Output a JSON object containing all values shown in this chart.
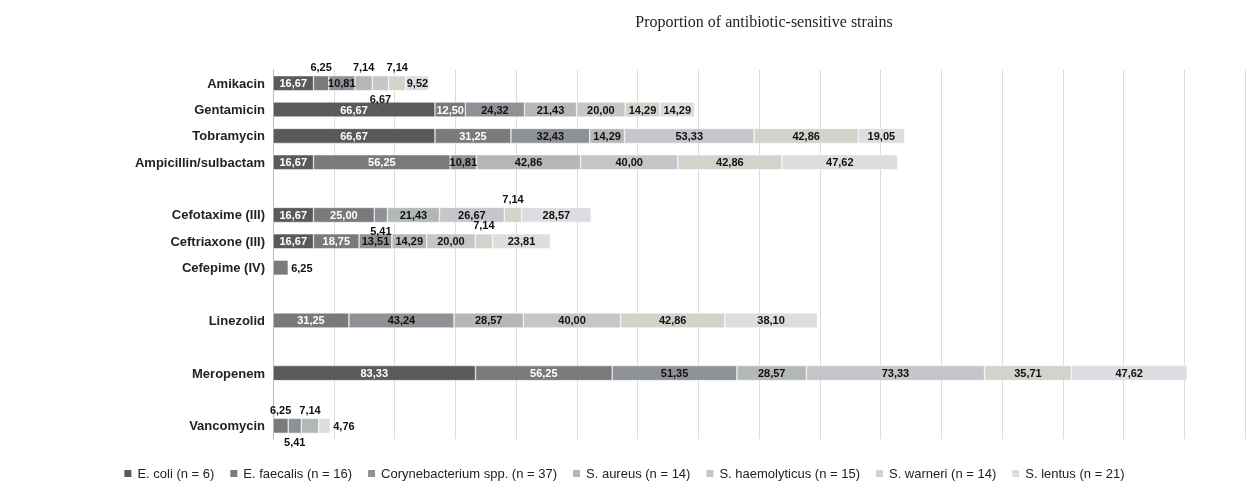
{
  "chart_data": {
    "type": "bar",
    "orientation": "horizontal",
    "stacked": true,
    "title": "Proportion of antibiotic-sensitive strains",
    "categories": [
      "Amikacin",
      "Gentamicin",
      "Tobramycin",
      "Ampicillin/sulbactam",
      null,
      "Cefotaxime (III)",
      "Ceftriaxone (III)",
      "Cefepime (IV)",
      null,
      "Linezolid",
      null,
      "Meropenem",
      null,
      "Vancomycin"
    ],
    "series": [
      {
        "name": "E. coli (n = 6)",
        "color": "#5a5a5c",
        "values": [
          16.67,
          66.67,
          66.67,
          16.67,
          null,
          16.67,
          16.67,
          null,
          null,
          null,
          null,
          83.33,
          null,
          null
        ],
        "value_labels": [
          "16,67",
          "66,67",
          "66,67",
          "16,67",
          null,
          "16,67",
          "16,67",
          null,
          null,
          null,
          null,
          "83,33",
          null,
          null
        ]
      },
      {
        "name": "E. faecalis (n = 16)",
        "color": "#7a7a7c",
        "values": [
          6.25,
          12.5,
          31.25,
          56.25,
          null,
          25.0,
          18.75,
          6.25,
          null,
          31.25,
          null,
          56.25,
          null,
          6.25
        ],
        "value_labels": [
          "6,25",
          "12,50",
          "31,25",
          "56,25",
          null,
          "25,00",
          "18,75",
          "6,25",
          null,
          "31,25",
          null,
          "56,25",
          null,
          "6,25"
        ]
      },
      {
        "name": "Corynebacterium spp. (n = 37)",
        "color": "#8e9196",
        "values": [
          10.81,
          24.32,
          32.43,
          10.81,
          null,
          5.41,
          13.51,
          null,
          null,
          43.24,
          null,
          51.35,
          null,
          5.41
        ],
        "value_labels": [
          "10,81",
          "24,32",
          "32,43",
          "10,81",
          null,
          "5,41",
          "13,51",
          null,
          null,
          "43,24",
          null,
          "51,35",
          null,
          "5,41"
        ]
      },
      {
        "name": "S. aureus (n = 14)",
        "color": "#b4b8b4",
        "values": [
          7.14,
          21.43,
          14.29,
          42.86,
          null,
          21.43,
          14.29,
          null,
          null,
          28.57,
          null,
          28.57,
          null,
          7.14
        ],
        "value_labels": [
          "7,14",
          "21,43",
          "14,29",
          "42,86",
          null,
          "21,43",
          "14,29",
          null,
          null,
          "28,57",
          null,
          "28,57",
          null,
          "7,14"
        ]
      },
      {
        "name": "S. haemolyticus (n = 15)",
        "color": "#c6c5ca",
        "values": [
          6.67,
          20.0,
          53.33,
          40.0,
          null,
          26.67,
          20.0,
          null,
          null,
          40.0,
          null,
          73.33,
          null,
          null
        ],
        "value_labels": [
          "6,67",
          "20,00",
          "53,33",
          "40,00",
          null,
          "26,67",
          "20,00",
          null,
          null,
          "40,00",
          null,
          "73,33",
          null,
          null
        ]
      },
      {
        "name": "S. warneri (n = 14)",
        "color": "#d3d3cc",
        "values": [
          7.14,
          14.29,
          42.86,
          42.86,
          null,
          7.14,
          7.14,
          null,
          null,
          42.86,
          null,
          35.71,
          null,
          null
        ],
        "value_labels": [
          "7,14",
          "14,29",
          "42,86",
          "42,86",
          null,
          "7,14",
          "7,14",
          null,
          null,
          "42,86",
          null,
          "35,71",
          null,
          null
        ]
      },
      {
        "name": "S. lentus (n = 21)",
        "color": "#dcdde0",
        "values": [
          9.52,
          14.29,
          19.05,
          47.62,
          null,
          28.57,
          23.81,
          null,
          null,
          38.1,
          null,
          47.62,
          null,
          4.76
        ],
        "value_labels": [
          "9,52",
          "14,29",
          "19,05",
          "47,62",
          null,
          "28,57",
          "23,81",
          null,
          null,
          "38,10",
          null,
          "47,62",
          null,
          "4,76"
        ]
      }
    ],
    "xlim": [
      0,
      400
    ],
    "xticks": [
      {
        "value": 0,
        "label": null
      },
      {
        "value": 25,
        "label": null
      },
      {
        "value": 50,
        "label": null
      },
      {
        "value": 75,
        "label": null
      },
      {
        "value": 100,
        "label": null
      },
      {
        "value": 125,
        "label": null
      },
      {
        "value": 150,
        "label": null
      },
      {
        "value": 175,
        "label": null
      },
      {
        "value": 200,
        "label": null
      },
      {
        "value": 225,
        "label": null
      },
      {
        "value": 250,
        "label": null
      },
      {
        "value": 275,
        "label": null
      },
      {
        "value": 300,
        "label": null
      },
      {
        "value": 325,
        "label": null
      },
      {
        "value": 350,
        "label": null
      },
      {
        "value": 375,
        "label": null
      },
      {
        "value": 400,
        "label": null
      }
    ],
    "tick_labels": "y",
    "grid": "x",
    "legend": "bottom"
  }
}
